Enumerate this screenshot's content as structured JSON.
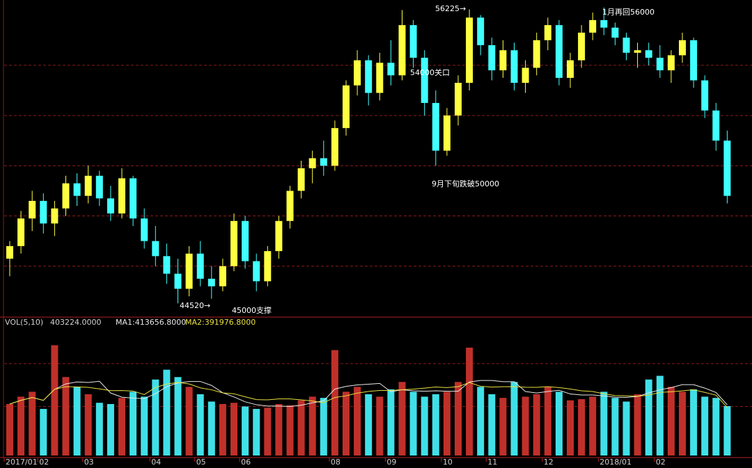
{
  "chart_data": [
    {
      "type": "candlestick",
      "up_color": "#ffff40",
      "down_color": "#40ffff",
      "ylim": [
        44000,
        56600
      ],
      "yticks": [
        46000,
        48000,
        50000,
        52000,
        54000
      ],
      "grid": true,
      "categories": [
        "2017/01",
        null,
        null,
        "02",
        null,
        null,
        null,
        "03",
        null,
        null,
        null,
        null,
        null,
        "04",
        null,
        null,
        null,
        "05",
        null,
        null,
        null,
        "06",
        null,
        null,
        null,
        null,
        null,
        null,
        null,
        "08",
        null,
        null,
        null,
        null,
        "09",
        null,
        null,
        null,
        null,
        "10",
        null,
        null,
        null,
        "11",
        null,
        null,
        null,
        null,
        "12",
        null,
        null,
        null,
        null,
        "2018/01",
        null,
        null,
        null,
        null,
        "02",
        null,
        null,
        null,
        null,
        null,
        null
      ],
      "open": [
        46300,
        46800,
        47900,
        48600,
        47700,
        48300,
        49300,
        48800,
        49600,
        48700,
        48100,
        49500,
        47900,
        47000,
        46400,
        45700,
        45100,
        46500,
        45500,
        45200,
        46000,
        47800,
        46200,
        45400,
        46600,
        47800,
        49000,
        49900,
        50300,
        50000,
        51500,
        53200,
        54200,
        52900,
        54100,
        53600,
        55600,
        54300,
        52500,
        50600,
        52000,
        53300,
        55900,
        54800,
        53800,
        54600,
        53300,
        53900,
        55000,
        55600,
        53500,
        54200,
        55300,
        55800,
        55500,
        55100,
        54500,
        54600,
        54300,
        53800,
        54400,
        55000,
        53400,
        52200,
        51000
      ],
      "high": [
        47000,
        48200,
        49000,
        48900,
        48600,
        49600,
        49700,
        50000,
        49800,
        49200,
        49900,
        49600,
        48300,
        47600,
        46900,
        46300,
        46800,
        47000,
        46000,
        46300,
        48100,
        48000,
        46500,
        46800,
        48000,
        49200,
        50200,
        50600,
        51000,
        51800,
        53400,
        54600,
        54400,
        54500,
        55000,
        56200,
        55800,
        54600,
        53000,
        52300,
        53600,
        56225,
        56000,
        55100,
        55000,
        54900,
        54200,
        55300,
        55900,
        55800,
        54500,
        55600,
        56100,
        56300,
        55700,
        55300,
        54900,
        54900,
        54800,
        54600,
        55300,
        55100,
        53600,
        52500,
        51400
      ],
      "low": [
        45600,
        46500,
        47400,
        47300,
        47200,
        48000,
        48400,
        48500,
        48400,
        47800,
        47900,
        47600,
        46700,
        46000,
        45300,
        44520,
        44800,
        45200,
        44700,
        45000,
        45800,
        45900,
        45000,
        45200,
        46300,
        47500,
        48700,
        49300,
        49600,
        49800,
        51200,
        52800,
        52400,
        52600,
        53200,
        53400,
        53900,
        52000,
        50000,
        50400,
        51600,
        53000,
        54400,
        53400,
        53500,
        53000,
        52900,
        53600,
        54600,
        53200,
        53100,
        53900,
        55000,
        55200,
        54800,
        54200,
        53900,
        54000,
        53500,
        53300,
        54100,
        53100,
        51900,
        50600,
        48500
      ],
      "close": [
        46800,
        47900,
        48600,
        47700,
        48300,
        49300,
        48800,
        49600,
        48700,
        48100,
        49500,
        47900,
        47000,
        46400,
        45700,
        45100,
        46500,
        45500,
        45200,
        46000,
        47800,
        46200,
        45400,
        46600,
        47800,
        49000,
        49900,
        50300,
        50000,
        51500,
        53200,
        54200,
        52900,
        54100,
        53600,
        55600,
        54300,
        52500,
        50600,
        52000,
        53300,
        55900,
        54800,
        53800,
        54600,
        53300,
        53900,
        55000,
        55600,
        53500,
        54200,
        55300,
        55800,
        55500,
        55100,
        54500,
        54600,
        54300,
        53800,
        54400,
        55000,
        53400,
        52200,
        51000,
        48800
      ],
      "annotations": [
        "56225→",
        "1月再回56000",
        "54000关口",
        "9月下旬跌破50000",
        "44520→",
        "45000支撑"
      ]
    },
    {
      "type": "bar",
      "header": [
        "VOL(5,10)",
        "403224.0000",
        "MA1:413656.8000",
        "MA2:391976.8000"
      ],
      "up_color": "#c0302a",
      "down_color": "#40e0e8",
      "ylim": [
        0,
        1050000
      ],
      "yticks": [
        400000,
        750000
      ],
      "grid": true,
      "values": [
        420000,
        480000,
        520000,
        380000,
        900000,
        640000,
        560000,
        500000,
        430000,
        420000,
        470000,
        520000,
        480000,
        620000,
        700000,
        640000,
        560000,
        500000,
        440000,
        420000,
        430000,
        400000,
        380000,
        390000,
        420000,
        410000,
        450000,
        480000,
        470000,
        860000,
        520000,
        560000,
        500000,
        480000,
        540000,
        600000,
        520000,
        480000,
        500000,
        520000,
        600000,
        880000,
        560000,
        500000,
        470000,
        600000,
        480000,
        500000,
        560000,
        520000,
        450000,
        460000,
        480000,
        520000,
        470000,
        440000,
        500000,
        620000,
        650000,
        560000,
        520000,
        540000,
        480000,
        470000,
        403224
      ],
      "series": [
        {
          "name": "MA1",
          "color": "#e8e8e8",
          "values": [
            420000,
            450000,
            473333,
            450000,
            540000,
            584000,
            600000,
            596000,
            606000,
            510000,
            476000,
            468000,
            464000,
            504000,
            562000,
            592000,
            604000,
            604000,
            572000,
            512000,
            478000,
            438000,
            414000,
            404000,
            404000,
            400000,
            410000,
            430000,
            446000,
            542000,
            564000,
            576000,
            582000,
            588000,
            520000,
            536000,
            528000,
            524000,
            528000,
            524000,
            524000,
            600000,
            612000,
            612000,
            602000,
            602000,
            522000,
            510000,
            522000,
            532000,
            502000,
            494000,
            494000,
            486000,
            476000,
            474000,
            482000,
            510000,
            536000,
            554000,
            578000,
            578000,
            550000,
            514000,
            413656.8
          ]
        },
        {
          "name": "MA2",
          "color": "#e8e040",
          "values": [
            420000,
            450000,
            473333,
            450000,
            540000,
            562000,
            560000,
            556000,
            543333,
            529000,
            530000,
            526000,
            497000,
            555000,
            583000,
            596000,
            584000,
            552000,
            536000,
            511000,
            504000,
            479000,
            456000,
            454000,
            462000,
            462000,
            454000,
            445000,
            431000,
            473000,
            487000,
            509000,
            523000,
            531000,
            531000,
            537000,
            541000,
            550000,
            559000,
            554000,
            562000,
            595000,
            565000,
            558000,
            561000,
            562000,
            557000,
            556000,
            562000,
            554000,
            543000,
            528000,
            522000,
            504000,
            489000,
            487000,
            483000,
            493000,
            515000,
            520000,
            528000,
            536000,
            515000,
            492000,
            391976.8
          ]
        }
      ]
    }
  ]
}
